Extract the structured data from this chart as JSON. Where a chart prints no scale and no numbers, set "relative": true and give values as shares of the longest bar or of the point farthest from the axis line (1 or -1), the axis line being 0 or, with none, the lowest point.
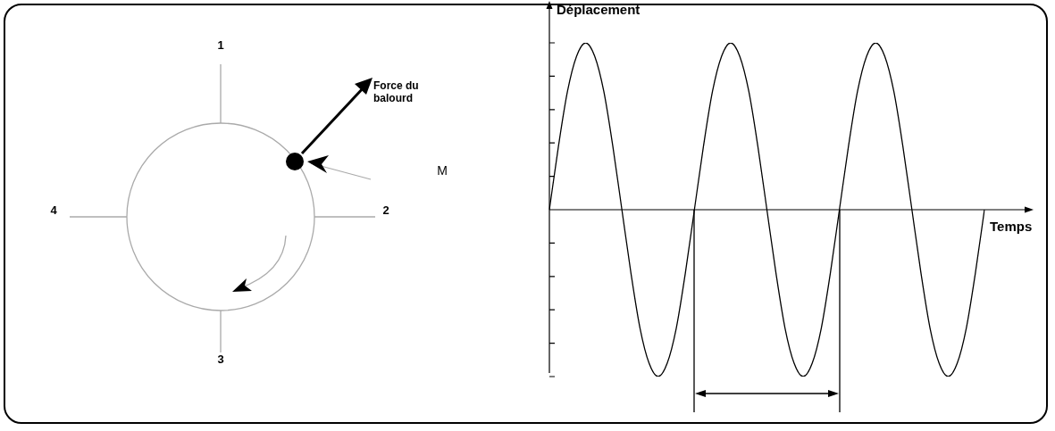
{
  "chart_data": {
    "type": "line",
    "relative": true,
    "xlabel": "Temps",
    "ylabel": "Déplacement",
    "color": "#000000",
    "categories": [
      null,
      null,
      null,
      null,
      null,
      null,
      null,
      null,
      null,
      null,
      null,
      null,
      null,
      null,
      null,
      null,
      null,
      null,
      null,
      null,
      null,
      null,
      null,
      null,
      null,
      null,
      null,
      null,
      null,
      null,
      null,
      null,
      null,
      null,
      null,
      null,
      null,
      null,
      null,
      null,
      null,
      null,
      null,
      null,
      null,
      null,
      null,
      null,
      null
    ],
    "values": [
      0,
      0.38,
      0.71,
      0.92,
      1,
      0.92,
      0.71,
      0.38,
      0,
      -0.38,
      -0.71,
      -0.92,
      -1,
      -0.92,
      -0.71,
      -0.38,
      0,
      0.38,
      0.71,
      0.92,
      1,
      0.92,
      0.71,
      0.38,
      0,
      -0.38,
      -0.71,
      -0.92,
      -1,
      -0.92,
      -0.71,
      -0.38,
      0,
      0.38,
      0.71,
      0.92,
      1,
      0.92,
      0.71,
      0.38,
      0,
      -0.38,
      -0.71,
      -0.92,
      -1,
      -0.92,
      -0.71,
      -0.38,
      0
    ],
    "annotations": [
      "1",
      "2",
      "3",
      "4",
      "Force du balourd",
      "M"
    ]
  }
}
